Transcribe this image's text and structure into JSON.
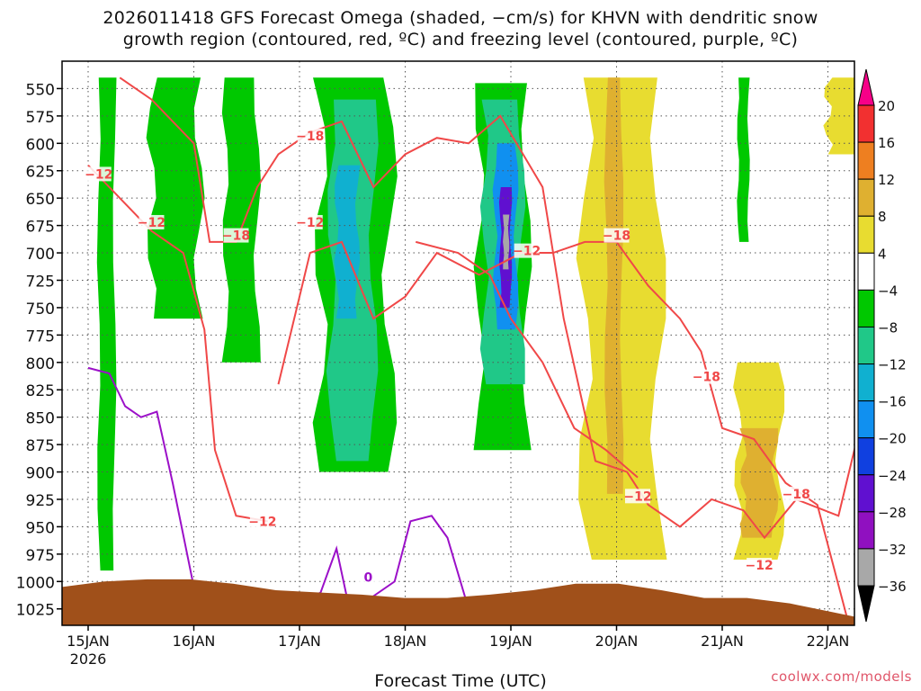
{
  "title": {
    "line1": "2026011418 GFS Forecast Omega (shaded, −cm/s) for KHVN with dendritic snow",
    "line2": "growth region (contoured, red, ºC) and freezing level (contoured, purple, ºC)"
  },
  "credit": "coolwx.com/models",
  "chart_data": {
    "type": "heatmap",
    "title": "2026011418 GFS Forecast Omega (shaded, −cm/s) for KHVN with dendritic snow growth region (contoured, red, ºC) and freezing level (contoured, purple, ºC)",
    "xlabel": "Forecast Time (UTC)",
    "ylabel": "",
    "xlim_days": [
      0,
      7.7
    ],
    "ylim": [
      1040,
      525
    ],
    "x_ticks": [
      {
        "label": "15JAN",
        "sub": "2026",
        "day": 0
      },
      {
        "label": "16JAN",
        "sub": "",
        "day": 1
      },
      {
        "label": "17JAN",
        "sub": "",
        "day": 2
      },
      {
        "label": "18JAN",
        "sub": "",
        "day": 3
      },
      {
        "label": "19JAN",
        "sub": "",
        "day": 4
      },
      {
        "label": "20JAN",
        "sub": "",
        "day": 5
      },
      {
        "label": "21JAN",
        "sub": "",
        "day": 6
      },
      {
        "label": "22JAN",
        "sub": "",
        "day": 7
      }
    ],
    "y_ticks": [
      "550",
      "575",
      "600",
      "625",
      "650",
      "675",
      "700",
      "725",
      "750",
      "775",
      "800",
      "825",
      "850",
      "875",
      "900",
      "925",
      "950",
      "975",
      "1000",
      "1025"
    ],
    "colorbar": {
      "labels": [
        "20",
        "16",
        "12",
        "8",
        "4",
        "−4",
        "−8",
        "−12",
        "−16",
        "−20",
        "−24",
        "−28",
        "−32",
        "−36"
      ],
      "colors": [
        "#f70088",
        "#f23030",
        "#ee7f20",
        "#dfb030",
        "#e8dc30",
        "#ffffff",
        "#00c800",
        "#20c888",
        "#10b0d0",
        "#1090f0",
        "#1040e0",
        "#6010d0",
        "#9010c0",
        "#a8a8a8",
        "#000000"
      ]
    },
    "omega_regions": [
      {
        "level": "-8",
        "color": "#00c800",
        "x0": 0.1,
        "x1": 0.25,
        "p0": 540,
        "p1": 990
      },
      {
        "level": "-8",
        "color": "#00c800",
        "x0": 0.6,
        "x1": 1.05,
        "p0": 540,
        "p1": 760
      },
      {
        "level": "-8",
        "color": "#00c800",
        "x0": 1.3,
        "x1": 1.6,
        "p0": 540,
        "p1": 800
      },
      {
        "level": "-8",
        "color": "#00c800",
        "x0": 2.2,
        "x1": 2.85,
        "p0": 540,
        "p1": 900
      },
      {
        "level": "-12",
        "color": "#20c888",
        "x0": 2.3,
        "x1": 2.7,
        "p0": 560,
        "p1": 890
      },
      {
        "level": "-16",
        "color": "#10b0d0",
        "x0": 2.35,
        "x1": 2.55,
        "p0": 620,
        "p1": 760
      },
      {
        "level": "-8",
        "color": "#00c800",
        "x0": 3.7,
        "x1": 4.15,
        "p0": 545,
        "p1": 880
      },
      {
        "level": "-12",
        "color": "#20c888",
        "x0": 3.75,
        "x1": 4.1,
        "p0": 560,
        "p1": 820
      },
      {
        "level": "-20",
        "color": "#1090f0",
        "x0": 3.85,
        "x1": 4.05,
        "p0": 600,
        "p1": 770
      },
      {
        "level": "-28",
        "color": "#6010d0",
        "x0": 3.9,
        "x1": 4.0,
        "p0": 640,
        "p1": 750
      },
      {
        "level": "-36",
        "color": "#a8a8a8",
        "x0": 3.93,
        "x1": 3.98,
        "p0": 665,
        "p1": 715
      },
      {
        "level": "4",
        "color": "#e8dc30",
        "x0": 4.7,
        "x1": 5.4,
        "p0": 540,
        "p1": 980
      },
      {
        "level": "8",
        "color": "#dfb030",
        "x0": 4.9,
        "x1": 5.05,
        "p0": 540,
        "p1": 920
      },
      {
        "level": "4",
        "color": "#e8dc30",
        "x0": 6.15,
        "x1": 6.55,
        "p0": 800,
        "p1": 980
      },
      {
        "level": "8",
        "color": "#dfb030",
        "x0": 6.2,
        "x1": 6.5,
        "p0": 860,
        "p1": 960
      },
      {
        "level": "-8",
        "color": "#00c800",
        "x0": 6.15,
        "x1": 6.25,
        "p0": 540,
        "p1": 690
      },
      {
        "level": "4",
        "color": "#e8dc30",
        "x0": 7.0,
        "x1": 7.4,
        "p0": 540,
        "p1": 610
      }
    ],
    "contour_labels_red": [
      {
        "text": "−12",
        "day": 0.1,
        "p": 628
      },
      {
        "text": "−12",
        "day": 0.6,
        "p": 672
      },
      {
        "text": "−18",
        "day": 1.4,
        "p": 684
      },
      {
        "text": "−12",
        "day": 1.65,
        "p": 945
      },
      {
        "text": "−18",
        "day": 2.1,
        "p": 593
      },
      {
        "text": "−12",
        "day": 2.1,
        "p": 672
      },
      {
        "text": "−12",
        "day": 4.15,
        "p": 698
      },
      {
        "text": "−18",
        "day": 5.0,
        "p": 684
      },
      {
        "text": "−12",
        "day": 5.2,
        "p": 922
      },
      {
        "text": "−18",
        "day": 5.85,
        "p": 813
      },
      {
        "text": "−12",
        "day": 6.35,
        "p": 985
      },
      {
        "text": "−18",
        "day": 6.7,
        "p": 920
      }
    ],
    "contour_labels_purple": [
      {
        "text": "0",
        "day": 2.65,
        "p": 996
      }
    ],
    "freezing_level": {
      "days": [
        0.0,
        0.2,
        0.35,
        0.5,
        0.65,
        0.8,
        1.0,
        1.3,
        2.0,
        2.2,
        2.35,
        2.45,
        2.6,
        2.9,
        3.05,
        3.25,
        3.4,
        3.6
      ],
      "p": [
        805,
        810,
        840,
        850,
        845,
        910,
        1005,
        1010,
        1020,
        1010,
        970,
        1015,
        1020,
        1000,
        945,
        940,
        960,
        1025
      ]
    },
    "ground_top_p": [
      1005,
      1000,
      998,
      998,
      1002,
      1008,
      1010,
      1012,
      1015,
      1015,
      1012,
      1008,
      1002,
      1002,
      1008,
      1015,
      1015,
      1020,
      1028,
      1036
    ]
  }
}
